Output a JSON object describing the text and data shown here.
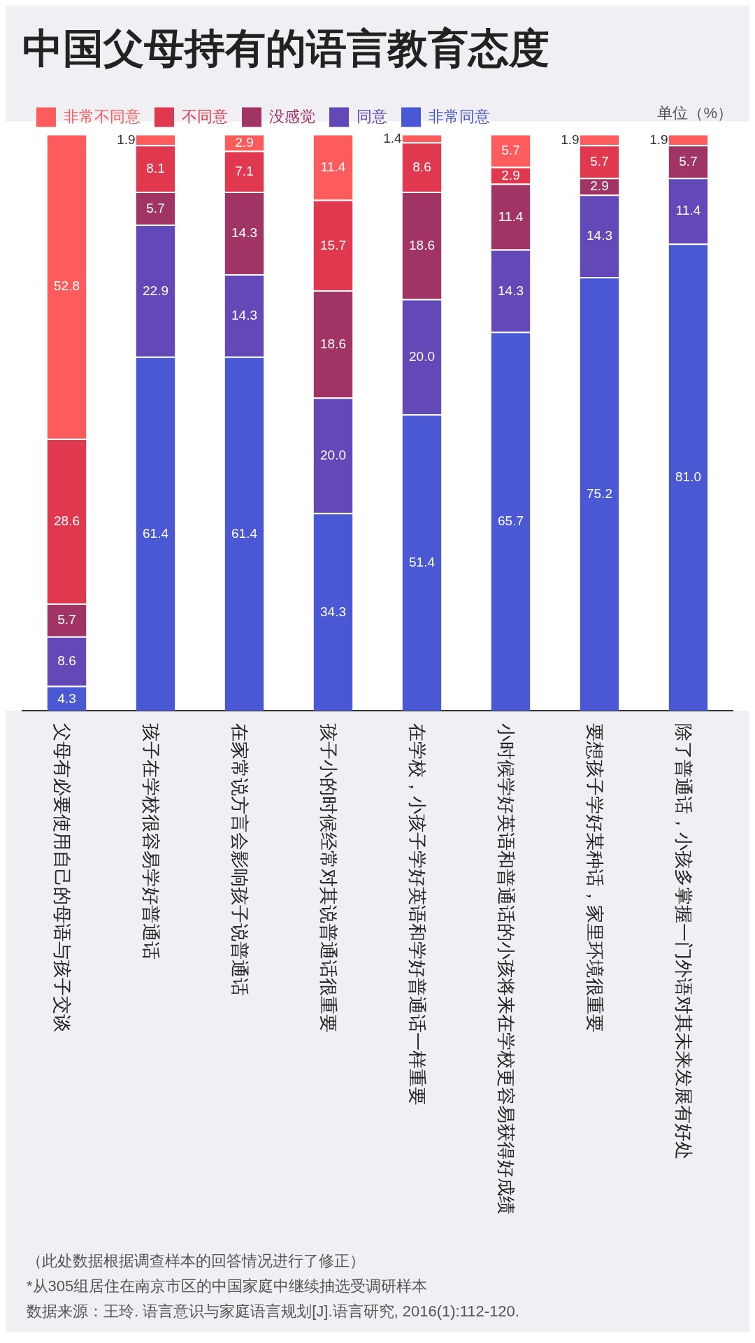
{
  "chart_data": {
    "type": "bar",
    "title": "中国父母持有的语言教育态度",
    "categories": [
      "父母有必要使用自己的母语与孩子交谈",
      "孩子在学校很容易学好普通话",
      "在家常说方言会影响孩子说普通话",
      "孩子小的时候经常对其说普通话很重要",
      "在学校，小孩子学好英语和学好普通话一样重要",
      "小时候学好英语和普通话的小孩将来在学校更容易获得好成绩",
      "要想孩子学好某种话，家里环境很重要",
      "除了普通话，小孩多掌握一门外语对其未来发展有好处"
    ],
    "series": [
      {
        "name": "非常同意",
        "color": "#4a58d4",
        "values": [
          4.3,
          61.4,
          61.4,
          34.3,
          51.4,
          65.7,
          75.2,
          81.0
        ],
        "value_labels": [
          "4.3",
          "61.4",
          "61.4",
          "34.3",
          "51.4",
          "65.7",
          "75.2",
          "81.0"
        ]
      },
      {
        "name": "同意",
        "color": "#6349b8",
        "values": [
          8.6,
          22.9,
          14.3,
          20.0,
          20.0,
          14.3,
          14.3,
          11.4
        ],
        "value_labels": [
          "8.6",
          "22.9",
          "14.3",
          "20.0",
          "20.0",
          "14.3",
          "14.3",
          "11.4"
        ]
      },
      {
        "name": "没感觉",
        "color": "#a03565",
        "values": [
          5.7,
          5.7,
          14.3,
          18.6,
          18.6,
          11.4,
          2.9,
          5.7
        ],
        "value_labels": [
          "5.7",
          "5.7",
          "14.3",
          "18.6",
          "18.6",
          "11.4",
          "2.9",
          "5.7"
        ]
      },
      {
        "name": "不同意",
        "color": "#e0384f",
        "values": [
          28.6,
          8.1,
          7.1,
          15.7,
          8.6,
          2.9,
          5.7,
          null
        ],
        "value_labels": [
          "28.6",
          "8.1",
          "7.1",
          "15.7",
          "8.6",
          "2.9",
          "5.7",
          null
        ]
      },
      {
        "name": "非常不同意",
        "color": "#fd5c5c",
        "values": [
          52.8,
          1.9,
          2.9,
          11.4,
          1.4,
          5.7,
          1.9,
          1.9
        ],
        "value_labels": [
          "52.8",
          "1.9",
          "2.9",
          "11.4",
          "1.4",
          "5.7",
          "1.9",
          "1.9"
        ]
      }
    ],
    "stacked": true,
    "tick_labels": "x",
    "legend": "top",
    "annotations": [
      "单位（%）",
      "（此处数据根据调查样本的回答情况进行了修正）",
      "*从305组居住在南京市区的中国家庭中继续抽选受调研样本",
      "数据来源：王玲. 语言意识与家庭语言规划[J].语言研究, 2016(1):112-120."
    ]
  }
}
